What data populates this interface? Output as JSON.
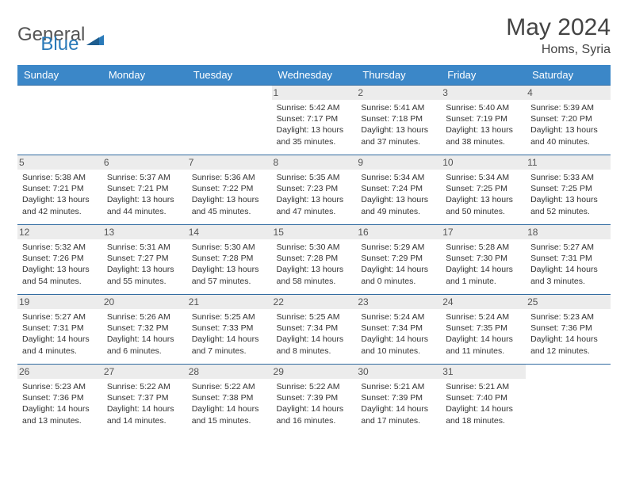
{
  "logo": {
    "part1": "General",
    "part2": "Blue"
  },
  "title": "May 2024",
  "location": "Homs, Syria",
  "colors": {
    "header_bg": "#3b87c8",
    "header_text": "#ffffff",
    "day_label_bg": "#ececec",
    "border": "#2f6aa0",
    "logo_gray": "#555555",
    "logo_blue": "#2a7ab9"
  },
  "day_headers": [
    "Sunday",
    "Monday",
    "Tuesday",
    "Wednesday",
    "Thursday",
    "Friday",
    "Saturday"
  ],
  "weeks": [
    [
      {
        "num": "",
        "lines": []
      },
      {
        "num": "",
        "lines": []
      },
      {
        "num": "",
        "lines": []
      },
      {
        "num": "1",
        "lines": [
          "Sunrise: 5:42 AM",
          "Sunset: 7:17 PM",
          "Daylight: 13 hours and 35 minutes."
        ]
      },
      {
        "num": "2",
        "lines": [
          "Sunrise: 5:41 AM",
          "Sunset: 7:18 PM",
          "Daylight: 13 hours and 37 minutes."
        ]
      },
      {
        "num": "3",
        "lines": [
          "Sunrise: 5:40 AM",
          "Sunset: 7:19 PM",
          "Daylight: 13 hours and 38 minutes."
        ]
      },
      {
        "num": "4",
        "lines": [
          "Sunrise: 5:39 AM",
          "Sunset: 7:20 PM",
          "Daylight: 13 hours and 40 minutes."
        ]
      }
    ],
    [
      {
        "num": "5",
        "lines": [
          "Sunrise: 5:38 AM",
          "Sunset: 7:21 PM",
          "Daylight: 13 hours and 42 minutes."
        ]
      },
      {
        "num": "6",
        "lines": [
          "Sunrise: 5:37 AM",
          "Sunset: 7:21 PM",
          "Daylight: 13 hours and 44 minutes."
        ]
      },
      {
        "num": "7",
        "lines": [
          "Sunrise: 5:36 AM",
          "Sunset: 7:22 PM",
          "Daylight: 13 hours and 45 minutes."
        ]
      },
      {
        "num": "8",
        "lines": [
          "Sunrise: 5:35 AM",
          "Sunset: 7:23 PM",
          "Daylight: 13 hours and 47 minutes."
        ]
      },
      {
        "num": "9",
        "lines": [
          "Sunrise: 5:34 AM",
          "Sunset: 7:24 PM",
          "Daylight: 13 hours and 49 minutes."
        ]
      },
      {
        "num": "10",
        "lines": [
          "Sunrise: 5:34 AM",
          "Sunset: 7:25 PM",
          "Daylight: 13 hours and 50 minutes."
        ]
      },
      {
        "num": "11",
        "lines": [
          "Sunrise: 5:33 AM",
          "Sunset: 7:25 PM",
          "Daylight: 13 hours and 52 minutes."
        ]
      }
    ],
    [
      {
        "num": "12",
        "lines": [
          "Sunrise: 5:32 AM",
          "Sunset: 7:26 PM",
          "Daylight: 13 hours and 54 minutes."
        ]
      },
      {
        "num": "13",
        "lines": [
          "Sunrise: 5:31 AM",
          "Sunset: 7:27 PM",
          "Daylight: 13 hours and 55 minutes."
        ]
      },
      {
        "num": "14",
        "lines": [
          "Sunrise: 5:30 AM",
          "Sunset: 7:28 PM",
          "Daylight: 13 hours and 57 minutes."
        ]
      },
      {
        "num": "15",
        "lines": [
          "Sunrise: 5:30 AM",
          "Sunset: 7:28 PM",
          "Daylight: 13 hours and 58 minutes."
        ]
      },
      {
        "num": "16",
        "lines": [
          "Sunrise: 5:29 AM",
          "Sunset: 7:29 PM",
          "Daylight: 14 hours and 0 minutes."
        ]
      },
      {
        "num": "17",
        "lines": [
          "Sunrise: 5:28 AM",
          "Sunset: 7:30 PM",
          "Daylight: 14 hours and 1 minute."
        ]
      },
      {
        "num": "18",
        "lines": [
          "Sunrise: 5:27 AM",
          "Sunset: 7:31 PM",
          "Daylight: 14 hours and 3 minutes."
        ]
      }
    ],
    [
      {
        "num": "19",
        "lines": [
          "Sunrise: 5:27 AM",
          "Sunset: 7:31 PM",
          "Daylight: 14 hours and 4 minutes."
        ]
      },
      {
        "num": "20",
        "lines": [
          "Sunrise: 5:26 AM",
          "Sunset: 7:32 PM",
          "Daylight: 14 hours and 6 minutes."
        ]
      },
      {
        "num": "21",
        "lines": [
          "Sunrise: 5:25 AM",
          "Sunset: 7:33 PM",
          "Daylight: 14 hours and 7 minutes."
        ]
      },
      {
        "num": "22",
        "lines": [
          "Sunrise: 5:25 AM",
          "Sunset: 7:34 PM",
          "Daylight: 14 hours and 8 minutes."
        ]
      },
      {
        "num": "23",
        "lines": [
          "Sunrise: 5:24 AM",
          "Sunset: 7:34 PM",
          "Daylight: 14 hours and 10 minutes."
        ]
      },
      {
        "num": "24",
        "lines": [
          "Sunrise: 5:24 AM",
          "Sunset: 7:35 PM",
          "Daylight: 14 hours and 11 minutes."
        ]
      },
      {
        "num": "25",
        "lines": [
          "Sunrise: 5:23 AM",
          "Sunset: 7:36 PM",
          "Daylight: 14 hours and 12 minutes."
        ]
      }
    ],
    [
      {
        "num": "26",
        "lines": [
          "Sunrise: 5:23 AM",
          "Sunset: 7:36 PM",
          "Daylight: 14 hours and 13 minutes."
        ]
      },
      {
        "num": "27",
        "lines": [
          "Sunrise: 5:22 AM",
          "Sunset: 7:37 PM",
          "Daylight: 14 hours and 14 minutes."
        ]
      },
      {
        "num": "28",
        "lines": [
          "Sunrise: 5:22 AM",
          "Sunset: 7:38 PM",
          "Daylight: 14 hours and 15 minutes."
        ]
      },
      {
        "num": "29",
        "lines": [
          "Sunrise: 5:22 AM",
          "Sunset: 7:39 PM",
          "Daylight: 14 hours and 16 minutes."
        ]
      },
      {
        "num": "30",
        "lines": [
          "Sunrise: 5:21 AM",
          "Sunset: 7:39 PM",
          "Daylight: 14 hours and 17 minutes."
        ]
      },
      {
        "num": "31",
        "lines": [
          "Sunrise: 5:21 AM",
          "Sunset: 7:40 PM",
          "Daylight: 14 hours and 18 minutes."
        ]
      },
      {
        "num": "",
        "lines": []
      }
    ]
  ]
}
